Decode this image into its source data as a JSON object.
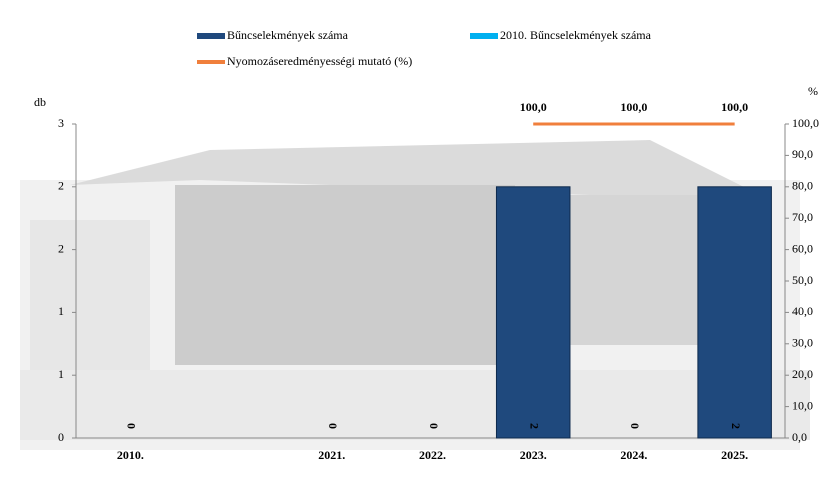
{
  "chart_data": {
    "type": "bar",
    "categories": [
      "2010.",
      null,
      "2021.",
      "2022.",
      "2023.",
      "2024.",
      "2025."
    ],
    "series": [
      {
        "name": "Bűncselekmények száma",
        "color": "#1f497d",
        "type": "bar",
        "values": [
          null,
          null,
          0,
          0,
          2,
          0,
          2
        ]
      },
      {
        "name": "2010. Bűncselekmények száma",
        "color": "#00b0f0",
        "type": "bar",
        "values": [
          0,
          null,
          null,
          null,
          null,
          null,
          null
        ]
      },
      {
        "name": "Nyomozáseredményességi mutató (%)",
        "color": "#f07f3c",
        "type": "line",
        "axis": "y2",
        "values": [
          null,
          null,
          null,
          null,
          100,
          100,
          100
        ],
        "value_labels": [
          null,
          null,
          null,
          null,
          "100,0",
          "100,0",
          "100,0"
        ]
      }
    ],
    "ylabel": "db",
    "y2label": "%",
    "ylim": [
      0,
      2.5
    ],
    "yticks": [
      0,
      {
        "value": 0.5,
        "label": "1"
      },
      1,
      {
        "value": 1.5,
        "label": "2"
      },
      2,
      {
        "value": 2.5,
        "label": "3"
      }
    ],
    "y2lim": [
      0,
      100
    ],
    "y2ticks": [
      {
        "value": 0,
        "label": "0,0"
      },
      {
        "value": 10,
        "label": "10,0"
      },
      {
        "value": 20,
        "label": "20,0"
      },
      {
        "value": 30,
        "label": "30,0"
      },
      {
        "value": 40,
        "label": "40,0"
      },
      {
        "value": 50,
        "label": "50,0"
      },
      {
        "value": 60,
        "label": "60,0"
      },
      {
        "value": 70,
        "label": "70,0"
      },
      {
        "value": 80,
        "label": "80,0"
      },
      {
        "value": 90,
        "label": "90,0"
      },
      {
        "value": 100,
        "label": "100,0"
      }
    ]
  }
}
